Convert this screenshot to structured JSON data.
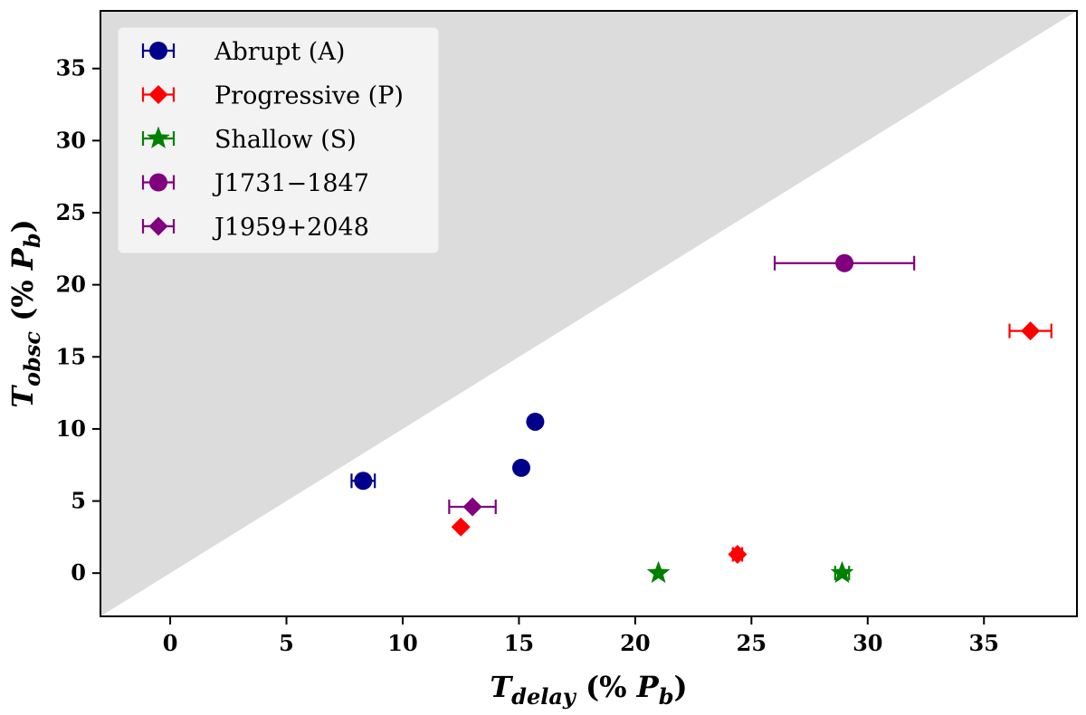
{
  "chart_data": {
    "type": "scatter",
    "title": "",
    "xlabel": "T_delay (% P_b)",
    "ylabel": "T_obsc (% P_b)",
    "xlabel_parts": {
      "main": "T",
      "sub": "delay",
      "rest": " (% ",
      "p": "P",
      "psub": "b",
      "close": ")"
    },
    "ylabel_parts": {
      "main": "T",
      "sub": "obsc",
      "rest": " (% ",
      "p": "P",
      "psub": "b",
      "close": ")"
    },
    "xlim": [
      -3,
      39
    ],
    "ylim": [
      -3,
      39
    ],
    "xticks": [
      0,
      5,
      10,
      15,
      20,
      25,
      30,
      35
    ],
    "yticks": [
      0,
      5,
      10,
      15,
      20,
      25,
      30,
      35
    ],
    "grid": false,
    "legend_position": "top-left",
    "shaded_region": {
      "description": "y > x",
      "color": "#dcdcdc"
    },
    "series": [
      {
        "name": "Abrupt (A)",
        "label": "Abrupt (A)",
        "marker": "circle",
        "color": "#00008b",
        "points": [
          {
            "x": 8.3,
            "y": 6.4,
            "xerr": 0.5
          },
          {
            "x": 15.1,
            "y": 7.3,
            "xerr": 0
          },
          {
            "x": 15.7,
            "y": 10.5,
            "xerr": 0.15
          }
        ]
      },
      {
        "name": "Progressive (P)",
        "label": "Progressive (P)",
        "marker": "diamond",
        "color": "#ff0000",
        "points": [
          {
            "x": 12.5,
            "y": 3.2,
            "xerr": 0
          },
          {
            "x": 24.4,
            "y": 1.3,
            "xerr": 0.2
          },
          {
            "x": 37.0,
            "y": 16.8,
            "xerr": 0.9
          }
        ]
      },
      {
        "name": "Shallow (S)",
        "label": "Shallow (S)",
        "marker": "star",
        "color": "#008000",
        "points": [
          {
            "x": 21.0,
            "y": 0.0,
            "xerr": 0
          },
          {
            "x": 28.9,
            "y": 0.0,
            "xerr": 0.3
          }
        ]
      },
      {
        "name": "J1731-1847",
        "label": "J1731−1847",
        "marker": "circle",
        "color": "#800080",
        "points": [
          {
            "x": 29.0,
            "y": 21.5,
            "xerr": 3.0
          }
        ]
      },
      {
        "name": "J1959+2048",
        "label": "J1959+2048",
        "marker": "diamond",
        "color": "#800080",
        "points": [
          {
            "x": 13.0,
            "y": 4.6,
            "xerr": 1.0
          }
        ]
      }
    ]
  }
}
